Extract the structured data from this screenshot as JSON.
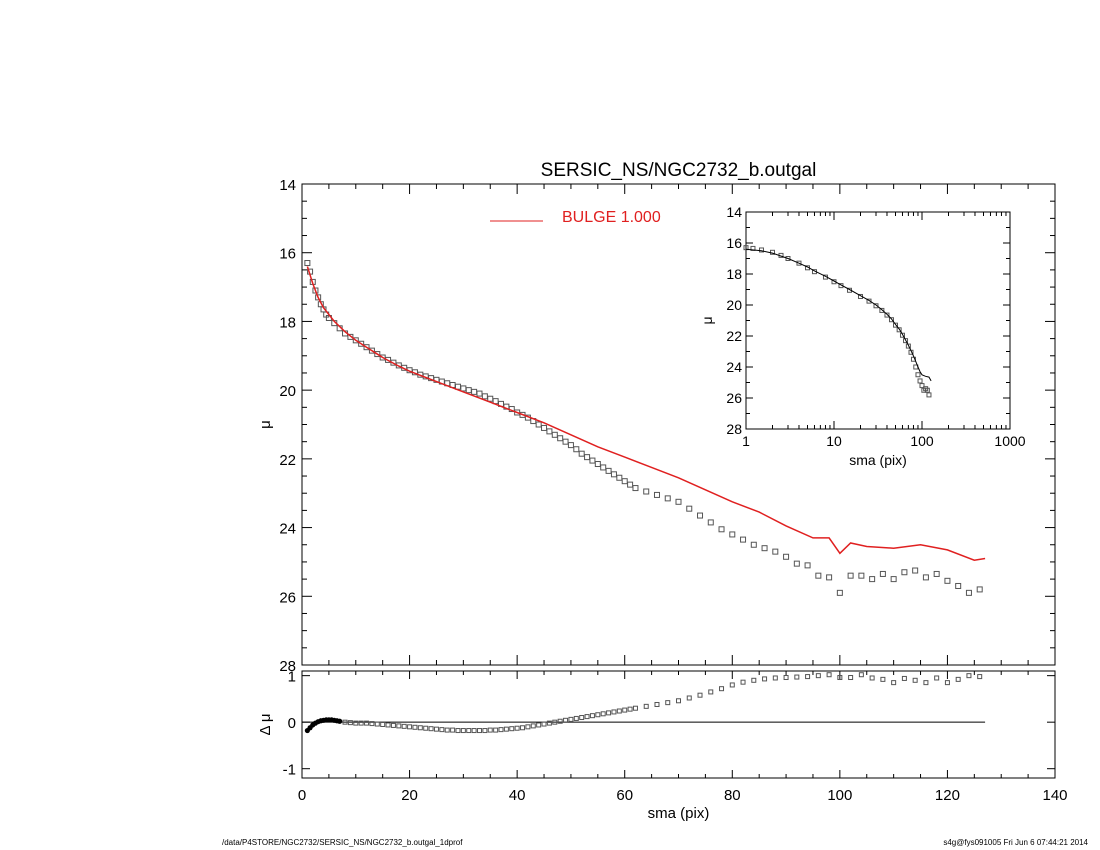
{
  "footer": {
    "left": "/data/P4STORE/NGC2732/SERSIC_NS/NGC2732_b.outgal_1dprof",
    "right": "s4g@fys091005  Fri Jun  6 07:44:21 2014"
  },
  "colors": {
    "model": "#e02020",
    "data": "#555555",
    "axes": "#000000"
  },
  "chart_data": [
    {
      "id": "main",
      "type": "line",
      "title": "SERSIC_NS/NGC2732_b.outgal",
      "xlabel": "",
      "ylabel": "μ",
      "xlim": [
        0,
        140
      ],
      "ylim": [
        28,
        14
      ],
      "y_reversed": true,
      "xticks": [
        0,
        20,
        40,
        60,
        80,
        100,
        120,
        140
      ],
      "yticks": [
        14,
        16,
        18,
        20,
        22,
        24,
        26,
        28
      ],
      "legend": {
        "label": "BULGE  1.000",
        "placement": "top-center"
      },
      "series": [
        {
          "name": "BULGE  1.000",
          "style": "line",
          "x": [
            1,
            2,
            3,
            4,
            5,
            6,
            8,
            10,
            12,
            15,
            18,
            20,
            25,
            30,
            35,
            40,
            45,
            50,
            55,
            60,
            65,
            70,
            75,
            80,
            85,
            90,
            95,
            98,
            100,
            102,
            105,
            110,
            115,
            120,
            125,
            127
          ],
          "y": [
            16.4,
            16.9,
            17.3,
            17.6,
            17.8,
            18.0,
            18.3,
            18.55,
            18.75,
            19.05,
            19.3,
            19.45,
            19.75,
            20.05,
            20.35,
            20.65,
            20.95,
            21.3,
            21.65,
            21.95,
            22.25,
            22.55,
            22.9,
            23.25,
            23.55,
            23.95,
            24.3,
            24.3,
            24.75,
            24.45,
            24.55,
            24.6,
            24.5,
            24.65,
            24.95,
            24.9
          ]
        },
        {
          "name": "",
          "style": "markers",
          "x": [
            1,
            1.5,
            2,
            2.5,
            3,
            3.5,
            4,
            4.5,
            5,
            6,
            7,
            8,
            9,
            10,
            11,
            12,
            13,
            14,
            15,
            16,
            17,
            18,
            19,
            20,
            21,
            22,
            23,
            24,
            25,
            26,
            27,
            28,
            29,
            30,
            31,
            32,
            33,
            34,
            35,
            36,
            37,
            38,
            39,
            40,
            41,
            42,
            43,
            44,
            45,
            46,
            47,
            48,
            49,
            50,
            51,
            52,
            53,
            54,
            55,
            56,
            57,
            58,
            59,
            60,
            61,
            62,
            64,
            66,
            68,
            70,
            72,
            74,
            76,
            78,
            80,
            82,
            84,
            86,
            88,
            90,
            92,
            94,
            96,
            98,
            100,
            102,
            104,
            106,
            108,
            110,
            112,
            114,
            116,
            118,
            120,
            122,
            124,
            126
          ],
          "y": [
            16.3,
            16.55,
            16.85,
            17.1,
            17.3,
            17.5,
            17.65,
            17.8,
            17.9,
            18.05,
            18.2,
            18.35,
            18.45,
            18.55,
            18.65,
            18.75,
            18.85,
            18.95,
            19.05,
            19.12,
            19.2,
            19.28,
            19.35,
            19.42,
            19.48,
            19.55,
            19.6,
            19.65,
            19.7,
            19.75,
            19.8,
            19.85,
            19.9,
            19.95,
            20.0,
            20.05,
            20.1,
            20.18,
            20.25,
            20.32,
            20.4,
            20.48,
            20.55,
            20.65,
            20.72,
            20.8,
            20.9,
            21.0,
            21.1,
            21.2,
            21.3,
            21.4,
            21.5,
            21.6,
            21.72,
            21.85,
            21.95,
            22.05,
            22.15,
            22.25,
            22.35,
            22.45,
            22.55,
            22.65,
            22.75,
            22.85,
            22.95,
            23.05,
            23.15,
            23.25,
            23.45,
            23.65,
            23.85,
            24.05,
            24.2,
            24.35,
            24.5,
            24.6,
            24.7,
            24.85,
            25.05,
            25.1,
            25.4,
            25.45,
            25.9,
            25.4,
            25.4,
            25.5,
            25.35,
            25.5,
            25.3,
            25.25,
            25.45,
            25.35,
            25.55,
            25.7,
            25.9,
            25.8
          ]
        }
      ]
    },
    {
      "id": "inset",
      "type": "scatter",
      "title": "",
      "xlabel": "sma (pix)",
      "ylabel": "μ",
      "x_scale": "log",
      "xlim": [
        1,
        1000
      ],
      "ylim": [
        28,
        14
      ],
      "y_reversed": true,
      "xticks": [
        1,
        10,
        100,
        1000
      ],
      "yticks": [
        14,
        16,
        18,
        20,
        22,
        24,
        26,
        28
      ],
      "series": [
        {
          "name": "",
          "style": "markers",
          "x": [
            1,
            1.2,
            1.5,
            2,
            2.5,
            3,
            4,
            5,
            6,
            8,
            10,
            12,
            15,
            20,
            25,
            30,
            35,
            40,
            45,
            50,
            55,
            60,
            65,
            70,
            75,
            80,
            85,
            90,
            95,
            100,
            105,
            110,
            115,
            120
          ],
          "y": [
            16.3,
            16.35,
            16.45,
            16.6,
            16.8,
            17.0,
            17.3,
            17.6,
            17.85,
            18.2,
            18.5,
            18.75,
            19.05,
            19.45,
            19.75,
            20.05,
            20.35,
            20.65,
            20.95,
            21.3,
            21.6,
            21.95,
            22.3,
            22.65,
            23.05,
            23.5,
            24.0,
            24.5,
            24.9,
            25.2,
            25.5,
            25.4,
            25.5,
            25.8
          ]
        },
        {
          "name": "",
          "style": "line",
          "x": [
            1,
            1.5,
            2,
            3,
            4,
            5,
            6,
            8,
            10,
            12,
            15,
            20,
            25,
            30,
            35,
            40,
            45,
            50,
            55,
            60,
            65,
            70,
            75,
            80,
            85,
            90,
            95,
            100,
            110,
            120,
            127
          ],
          "y": [
            16.4,
            16.5,
            16.65,
            17.0,
            17.3,
            17.55,
            17.8,
            18.15,
            18.45,
            18.7,
            19.0,
            19.4,
            19.7,
            20.0,
            20.3,
            20.6,
            20.9,
            21.25,
            21.55,
            21.9,
            22.25,
            22.6,
            22.95,
            23.3,
            23.65,
            24.0,
            24.3,
            24.5,
            24.6,
            24.65,
            24.9
          ]
        }
      ]
    },
    {
      "id": "residual",
      "type": "scatter",
      "title": "",
      "xlabel": "sma (pix)",
      "ylabel": "Δ μ",
      "xlim": [
        0,
        140
      ],
      "ylim": [
        -1.2,
        1.1
      ],
      "xticks": [
        0,
        20,
        40,
        60,
        80,
        100,
        120,
        140
      ],
      "yticks": [
        -1,
        0,
        1
      ],
      "zero_line": [
        0,
        127
      ],
      "series": [
        {
          "name": "",
          "style": "markers",
          "x": [
            1,
            1.5,
            2,
            2.5,
            3,
            3.5,
            4,
            4.5,
            5,
            5.5,
            6,
            6.5,
            7,
            8,
            9,
            10,
            11,
            12,
            13,
            14,
            15,
            16,
            17,
            18,
            19,
            20,
            21,
            22,
            23,
            24,
            25,
            26,
            27,
            28,
            29,
            30,
            31,
            32,
            33,
            34,
            35,
            36,
            37,
            38,
            39,
            40,
            41,
            42,
            43,
            44,
            45,
            46,
            47,
            48,
            49,
            50,
            51,
            52,
            53,
            54,
            55,
            56,
            57,
            58,
            59,
            60,
            61,
            62,
            64,
            66,
            68,
            70,
            72,
            74,
            76,
            78,
            80,
            82,
            84,
            86,
            88,
            90,
            92,
            94,
            96,
            98,
            100,
            102,
            104,
            106,
            108,
            110,
            112,
            114,
            116,
            118,
            120,
            122,
            124,
            126
          ],
          "y": [
            -0.18,
            -0.12,
            -0.06,
            -0.02,
            0.01,
            0.03,
            0.04,
            0.05,
            0.05,
            0.05,
            0.04,
            0.03,
            0.02,
            0.0,
            -0.01,
            -0.02,
            -0.02,
            -0.02,
            -0.03,
            -0.04,
            -0.05,
            -0.06,
            -0.07,
            -0.08,
            -0.09,
            -0.1,
            -0.11,
            -0.12,
            -0.13,
            -0.14,
            -0.15,
            -0.16,
            -0.17,
            -0.17,
            -0.18,
            -0.18,
            -0.18,
            -0.18,
            -0.18,
            -0.18,
            -0.17,
            -0.17,
            -0.16,
            -0.15,
            -0.14,
            -0.13,
            -0.12,
            -0.1,
            -0.08,
            -0.06,
            -0.04,
            -0.02,
            0.0,
            0.02,
            0.04,
            0.06,
            0.08,
            0.1,
            0.12,
            0.14,
            0.16,
            0.18,
            0.2,
            0.22,
            0.24,
            0.26,
            0.28,
            0.3,
            0.34,
            0.38,
            0.42,
            0.46,
            0.52,
            0.58,
            0.65,
            0.72,
            0.8,
            0.86,
            0.9,
            0.93,
            0.95,
            0.96,
            0.97,
            0.98,
            1.0,
            1.02,
            0.96,
            0.96,
            1.02,
            0.95,
            0.92,
            0.85,
            0.94,
            0.9,
            0.85,
            0.95,
            0.85,
            0.92,
            1.0,
            0.98
          ]
        }
      ]
    }
  ]
}
